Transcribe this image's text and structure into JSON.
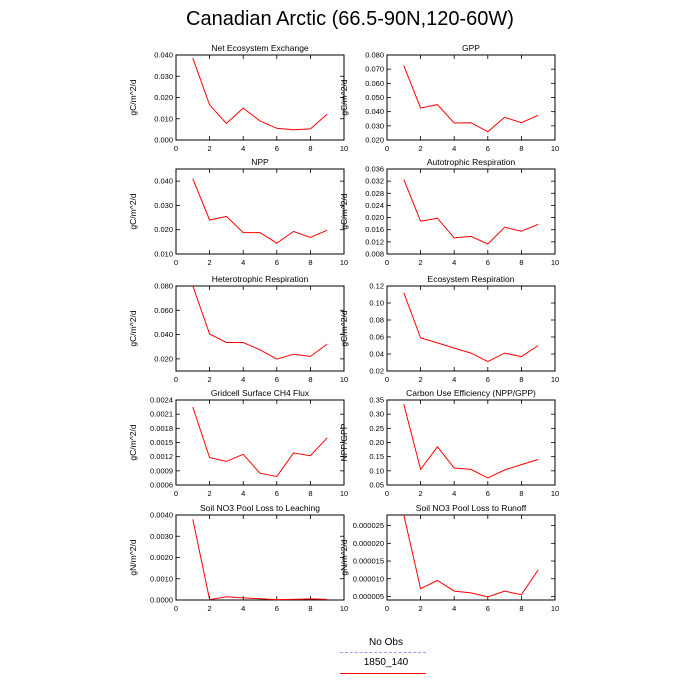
{
  "title": "Canadian Arctic (66.5-90N,120-60W)",
  "legend": [
    {
      "name": "No Obs",
      "color": "#9999ff",
      "dash": true
    },
    {
      "name": "1850_140",
      "color": "#ff0000",
      "dash": false
    }
  ],
  "chart_data": [
    {
      "type": "line",
      "title": "Net Ecosystem Exchange",
      "ylabel": "gC/m^2/d",
      "xlim": [
        0,
        10
      ],
      "xticks": [
        0,
        2,
        4,
        6,
        8,
        10
      ],
      "ylim": [
        0,
        0.04
      ],
      "yticks": [
        "0.000",
        "0.010",
        "0.020",
        "0.030",
        "0.040"
      ],
      "series": [
        {
          "name": "1850_140",
          "x": [
            1,
            2,
            3,
            4,
            5,
            6,
            7,
            8,
            9
          ],
          "y": [
            0.0385,
            0.0165,
            0.0078,
            0.015,
            0.009,
            0.0055,
            0.0048,
            0.0052,
            0.0122
          ]
        }
      ]
    },
    {
      "type": "line",
      "title": "GPP",
      "ylabel": "gC/m^2/d",
      "xlim": [
        0,
        10
      ],
      "xticks": [
        0,
        2,
        4,
        6,
        8,
        10
      ],
      "ylim": [
        0.02,
        0.08
      ],
      "yticks": [
        "0.020",
        "0.030",
        "0.040",
        "0.050",
        "0.060",
        "0.070",
        "0.080"
      ],
      "series": [
        {
          "name": "1850_140",
          "x": [
            1,
            2,
            3,
            4,
            5,
            6,
            7,
            8,
            9
          ],
          "y": [
            0.0725,
            0.0425,
            0.045,
            0.032,
            0.0322,
            0.0258,
            0.036,
            0.0322,
            0.0375
          ]
        }
      ]
    },
    {
      "type": "line",
      "title": "NPP",
      "ylabel": "gC/m^2/d",
      "xlim": [
        0,
        10
      ],
      "xticks": [
        0,
        2,
        4,
        6,
        8,
        10
      ],
      "ylim": [
        0.01,
        0.045
      ],
      "yticks": [
        "0.010",
        "0.020",
        "0.030",
        "0.040"
      ],
      "series": [
        {
          "name": "1850_140",
          "x": [
            1,
            2,
            3,
            4,
            5,
            6,
            7,
            8,
            9
          ],
          "y": [
            0.041,
            0.024,
            0.0255,
            0.0188,
            0.0188,
            0.0145,
            0.0193,
            0.0168,
            0.0198
          ]
        }
      ]
    },
    {
      "type": "line",
      "title": "Autotrophic Respiration",
      "ylabel": "gC/m^2/d",
      "xlim": [
        0,
        10
      ],
      "xticks": [
        0,
        2,
        4,
        6,
        8,
        10
      ],
      "ylim": [
        0.008,
        0.036
      ],
      "yticks": [
        "0.008",
        "0.012",
        "0.016",
        "0.020",
        "0.024",
        "0.028",
        "0.032",
        "0.036"
      ],
      "series": [
        {
          "name": "1850_140",
          "x": [
            1,
            2,
            3,
            4,
            5,
            6,
            7,
            8,
            9
          ],
          "y": [
            0.0325,
            0.0188,
            0.0198,
            0.0133,
            0.0138,
            0.0113,
            0.0168,
            0.0155,
            0.0178
          ]
        }
      ]
    },
    {
      "type": "line",
      "title": "Heterotrophic Respiration",
      "ylabel": "gC/m^2/d",
      "xlim": [
        0,
        10
      ],
      "xticks": [
        0,
        2,
        4,
        6,
        8,
        10
      ],
      "ylim": [
        0.01,
        0.08
      ],
      "yticks": [
        "0.020",
        "0.040",
        "0.060",
        "0.080"
      ],
      "series": [
        {
          "name": "1850_140",
          "x": [
            1,
            2,
            3,
            4,
            5,
            6,
            7,
            8,
            9
          ],
          "y": [
            0.08,
            0.0405,
            0.0335,
            0.0335,
            0.0275,
            0.0198,
            0.0238,
            0.022,
            0.0322
          ]
        }
      ]
    },
    {
      "type": "line",
      "title": "Ecosystem Respiration",
      "ylabel": "gC/m^2/d",
      "xlim": [
        0,
        10
      ],
      "xticks": [
        0,
        2,
        4,
        6,
        8,
        10
      ],
      "ylim": [
        0.02,
        0.12
      ],
      "yticks": [
        "0.02",
        "0.04",
        "0.06",
        "0.08",
        "0.10",
        "0.12"
      ],
      "series": [
        {
          "name": "1850_140",
          "x": [
            1,
            2,
            3,
            4,
            5,
            6,
            7,
            8,
            9
          ],
          "y": [
            0.112,
            0.059,
            0.053,
            0.047,
            0.041,
            0.031,
            0.041,
            0.037,
            0.05
          ]
        }
      ]
    },
    {
      "type": "line",
      "title": "Gridcell Surface CH4 Flux",
      "ylabel": "gC/m^2/d",
      "xlim": [
        0,
        10
      ],
      "xticks": [
        0,
        2,
        4,
        6,
        8,
        10
      ],
      "ylim": [
        0.0006,
        0.0024
      ],
      "yticks": [
        "0.0006",
        "0.0009",
        "0.0012",
        "0.0015",
        "0.0018",
        "0.0021",
        "0.0024"
      ],
      "series": [
        {
          "name": "1850_140",
          "x": [
            1,
            2,
            3,
            4,
            5,
            6,
            7,
            8,
            9
          ],
          "y": [
            0.00225,
            0.00118,
            0.0011,
            0.00125,
            0.00085,
            0.00078,
            0.00128,
            0.00122,
            0.0016
          ]
        }
      ]
    },
    {
      "type": "line",
      "title": "Carbon Use Efficiency (NPP/GPP)",
      "ylabel": "NPP/GPP",
      "xlim": [
        0,
        10
      ],
      "xticks": [
        0,
        2,
        4,
        6,
        8,
        10
      ],
      "ylim": [
        0.05,
        0.35
      ],
      "yticks": [
        "0.05",
        "0.10",
        "0.15",
        "0.20",
        "0.25",
        "0.30",
        "0.35"
      ],
      "series": [
        {
          "name": "1850_140",
          "x": [
            1,
            2,
            3,
            4,
            5,
            6,
            7,
            8,
            9
          ],
          "y": [
            0.335,
            0.105,
            0.185,
            0.11,
            0.105,
            0.075,
            0.103,
            0.122,
            0.14
          ]
        }
      ]
    },
    {
      "type": "line",
      "title": "Soil NO3 Pool Loss to Leaching",
      "ylabel": "gN/m^2/d",
      "xlim": [
        0,
        10
      ],
      "xticks": [
        0,
        2,
        4,
        6,
        8,
        10
      ],
      "ylim": [
        0,
        0.004
      ],
      "yticks": [
        "0.0000",
        "0.0010",
        "0.0020",
        "0.0030",
        "0.0040"
      ],
      "series": [
        {
          "name": "1850_140",
          "x": [
            1,
            2,
            3,
            4,
            5,
            6,
            7,
            8,
            9
          ],
          "y": [
            0.0038,
            2e-05,
            0.00015,
            0.0001,
            6e-05,
            2e-05,
            3e-05,
            5e-05,
            3e-05
          ]
        }
      ]
    },
    {
      "type": "line",
      "title": "Soil NO3 Pool Loss to Runoff",
      "ylabel": "gN/m^2/d",
      "xlim": [
        0,
        10
      ],
      "xticks": [
        0,
        2,
        4,
        6,
        8,
        10
      ],
      "ylim": [
        4e-06,
        2.8e-05
      ],
      "yticks": [
        "0.000005",
        "0.000010",
        "0.000015",
        "0.000020",
        "0.000025"
      ],
      "series": [
        {
          "name": "1850_140",
          "x": [
            1,
            2,
            3,
            4,
            5,
            6,
            7,
            8,
            9
          ],
          "y": [
            2.8e-05,
            7.2e-06,
            9.5e-06,
            6.5e-06,
            6e-06,
            4.9e-06,
            6.5e-06,
            5.5e-06,
            1.25e-05
          ]
        }
      ]
    }
  ]
}
